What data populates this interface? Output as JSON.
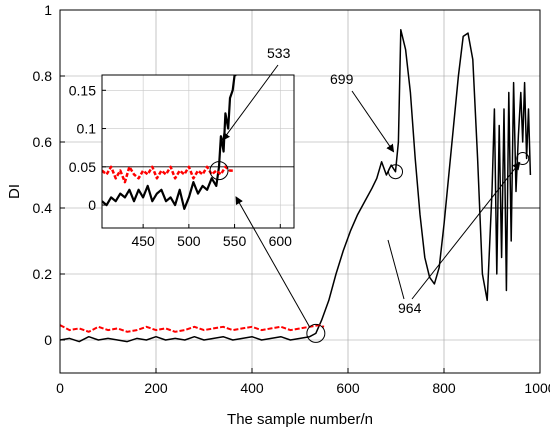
{
  "chart_data": [
    {
      "id": "main",
      "type": "line",
      "title": "",
      "xlabel": "The sample number/n",
      "ylabel": "DI",
      "xlim": [
        0,
        1000
      ],
      "ylim": [
        -0.1,
        1.0
      ],
      "xticks": [
        "0",
        "200",
        "400",
        "600",
        "800",
        "1000"
      ],
      "xtick_values": [
        0,
        200,
        400,
        600,
        800,
        1000
      ],
      "yticks": [
        "0",
        "0.2",
        "0.4",
        "0.6",
        "0.8",
        "1"
      ],
      "ytick_values": [
        0,
        0.2,
        0.4,
        0.6,
        0.8,
        1.0
      ],
      "grid": true,
      "series": [
        {
          "color": "#000000",
          "style": "solid",
          "x": [
            0,
            20,
            40,
            60,
            80,
            100,
            120,
            140,
            160,
            180,
            200,
            220,
            240,
            260,
            280,
            300,
            320,
            340,
            360,
            380,
            400,
            420,
            440,
            460,
            480,
            500,
            520,
            533,
            545,
            560,
            575,
            590,
            605,
            620,
            635,
            650,
            660,
            670,
            680,
            690,
            699,
            705,
            710,
            720,
            730,
            740,
            750,
            760,
            770,
            780,
            790,
            800,
            810,
            820,
            830,
            840,
            850,
            860,
            870,
            880,
            890,
            900,
            905,
            910,
            915,
            920,
            925,
            930,
            935,
            940,
            945,
            950,
            955,
            960,
            964,
            968,
            972,
            976,
            980
          ],
          "y": [
            0.0,
            0.005,
            -0.005,
            0.01,
            0.0,
            0.005,
            0.0,
            -0.005,
            0.005,
            0.0,
            0.01,
            0.0,
            0.005,
            0.0,
            0.01,
            0.0,
            0.005,
            0.01,
            0.0,
            0.005,
            0.01,
            0.0,
            0.005,
            0.01,
            0.0,
            0.005,
            0.01,
            0.02,
            0.06,
            0.12,
            0.2,
            0.27,
            0.33,
            0.38,
            0.42,
            0.46,
            0.49,
            0.54,
            0.5,
            0.53,
            0.51,
            0.6,
            0.94,
            0.88,
            0.75,
            0.55,
            0.38,
            0.25,
            0.19,
            0.17,
            0.22,
            0.35,
            0.5,
            0.65,
            0.8,
            0.92,
            0.93,
            0.85,
            0.55,
            0.2,
            0.12,
            0.45,
            0.7,
            0.2,
            0.65,
            0.25,
            0.7,
            0.15,
            0.75,
            0.3,
            0.78,
            0.45,
            0.62,
            0.75,
            0.6,
            0.78,
            0.55,
            0.7,
            0.5
          ]
        },
        {
          "color": "#ff0000",
          "style": "dashed",
          "x": [
            0,
            20,
            40,
            60,
            80,
            100,
            120,
            140,
            160,
            180,
            200,
            220,
            240,
            260,
            280,
            300,
            320,
            340,
            360,
            380,
            400,
            420,
            440,
            460,
            480,
            500,
            520,
            540,
            550
          ],
          "y": [
            0.045,
            0.03,
            0.035,
            0.025,
            0.04,
            0.03,
            0.035,
            0.025,
            0.03,
            0.04,
            0.03,
            0.035,
            0.025,
            0.03,
            0.04,
            0.03,
            0.035,
            0.04,
            0.03,
            0.035,
            0.04,
            0.03,
            0.035,
            0.04,
            0.03,
            0.035,
            0.04,
            0.045,
            0.04
          ]
        }
      ],
      "annotations": [
        {
          "text": "533",
          "x": 533,
          "y": 0.02
        },
        {
          "text": "699",
          "x": 699,
          "y": 0.51
        },
        {
          "text": "964",
          "x": 964,
          "y": 0.55
        }
      ]
    },
    {
      "id": "inset",
      "type": "line",
      "xlim": [
        405,
        615
      ],
      "ylim": [
        -0.03,
        0.17
      ],
      "xticks": [
        "450",
        "500",
        "550",
        "600"
      ],
      "xtick_values": [
        450,
        500,
        550,
        600
      ],
      "yticks": [
        "0",
        "0.05",
        "0.1",
        "0.15"
      ],
      "ytick_values": [
        0,
        0.05,
        0.1,
        0.15
      ],
      "grid": true,
      "series": [
        {
          "color": "#000000",
          "style": "solid",
          "x": [
            405,
            410,
            415,
            420,
            425,
            430,
            435,
            440,
            445,
            450,
            455,
            460,
            465,
            470,
            475,
            480,
            485,
            490,
            495,
            500,
            505,
            510,
            515,
            520,
            525,
            530,
            533,
            535,
            538,
            540,
            543,
            545,
            548,
            550,
            552
          ],
          "y": [
            0.005,
            0.0,
            0.01,
            0.005,
            0.015,
            0.01,
            0.02,
            0.005,
            0.02,
            0.01,
            0.025,
            0.005,
            0.015,
            0.02,
            0.005,
            0.01,
            0.0,
            0.02,
            -0.005,
            0.01,
            0.03,
            0.015,
            0.025,
            0.02,
            0.035,
            0.025,
            0.05,
            0.09,
            0.07,
            0.12,
            0.1,
            0.14,
            0.15,
            0.17,
            0.17
          ]
        },
        {
          "color": "#ff0000",
          "style": "dashed",
          "x": [
            405,
            410,
            415,
            420,
            425,
            430,
            435,
            440,
            445,
            450,
            455,
            460,
            465,
            470,
            475,
            480,
            485,
            490,
            495,
            500,
            505,
            510,
            515,
            520,
            525,
            530,
            535,
            540,
            545,
            550
          ],
          "y": [
            0.045,
            0.04,
            0.05,
            0.035,
            0.045,
            0.03,
            0.05,
            0.04,
            0.035,
            0.045,
            0.04,
            0.05,
            0.035,
            0.045,
            0.04,
            0.05,
            0.035,
            0.045,
            0.04,
            0.05,
            0.035,
            0.045,
            0.04,
            0.05,
            0.04,
            0.045,
            0.04,
            0.05,
            0.045,
            0.045
          ]
        }
      ]
    }
  ]
}
